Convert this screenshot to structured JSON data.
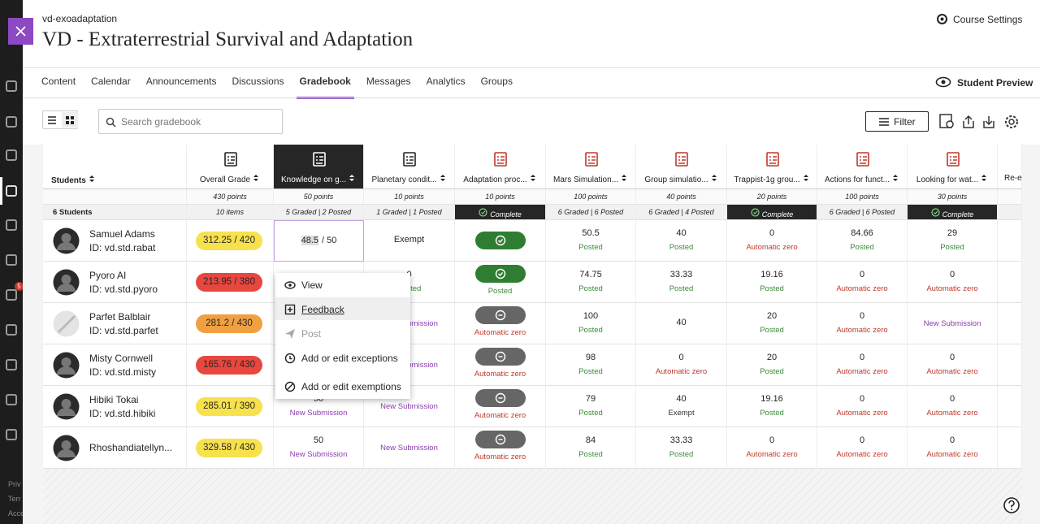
{
  "header": {
    "course_id": "vd-exoadaptation",
    "title": "VD - Extraterrestrial Survival and Adaptation",
    "settings": "Course Settings"
  },
  "tabs": {
    "items": [
      "Content",
      "Calendar",
      "Announcements",
      "Discussions",
      "Gradebook",
      "Messages",
      "Analytics",
      "Groups"
    ],
    "active": 4,
    "student_preview": "Student Preview"
  },
  "toolbar": {
    "search_placeholder": "Search gradebook",
    "filter": "Filter"
  },
  "sidebar": {
    "badge": "5",
    "footer": [
      "Priv",
      "Terr",
      "Acce"
    ]
  },
  "gradebook": {
    "columns": [
      {
        "name": "Students",
        "status": "6 Students"
      },
      {
        "name": "Overall Grade",
        "points": "430 points",
        "status": "10 items"
      },
      {
        "name": "Knowledge on g...",
        "points": "50 points",
        "status": "5 Graded | 2 Posted",
        "selected": true,
        "icon_color": "#222222"
      },
      {
        "name": "Planetary condit...",
        "points": "10 points",
        "status": "1 Graded | 1 Posted",
        "icon_color": "#222222"
      },
      {
        "name": "Adaptation proc...",
        "points": "10 points",
        "status": "Complete",
        "complete": true,
        "icon_color": "#c0392b"
      },
      {
        "name": "Mars Simulation...",
        "points": "100 points",
        "status": "6 Graded | 6 Posted",
        "icon_color": "#c0392b"
      },
      {
        "name": "Group simulatio...",
        "points": "40 points",
        "status": "6 Graded | 4 Posted",
        "icon_color": "#c0392b"
      },
      {
        "name": "Trappist-1g grou...",
        "points": "20 points",
        "status": "Complete",
        "complete": true,
        "icon_color": "#c0392b"
      },
      {
        "name": "Actions for funct...",
        "points": "100 points",
        "status": "6 Graded | 6 Posted",
        "icon_color": "#c0392b"
      },
      {
        "name": "Looking for wat...",
        "points": "30 points",
        "status": "Complete",
        "complete": true,
        "icon_color": "#c0392b"
      },
      {
        "name": "Re-e"
      }
    ],
    "rows": [
      {
        "name": "Samuel Adams",
        "id": "ID: vd.std.rabat",
        "grade": {
          "text": "312.25 / 420",
          "color": "#f7e14c"
        },
        "cells": [
          {
            "input": "48.5",
            "max": "/ 50"
          },
          {
            "main": "Exempt"
          },
          {
            "pill": "check"
          },
          {
            "main": "50.5",
            "sub": "Posted",
            "sub_color": "#3c8a3c"
          },
          {
            "main": "40",
            "sub": "Posted",
            "sub_color": "#3c8a3c"
          },
          {
            "main": "0",
            "sub": "Automatic zero",
            "sub_color": "#c0392b"
          },
          {
            "main": "84.66",
            "sub": "Posted",
            "sub_color": "#3c8a3c"
          },
          {
            "main": "29",
            "sub": "Posted",
            "sub_color": "#3c8a3c"
          }
        ]
      },
      {
        "name": "Pyoro AI",
        "id": "ID: vd.std.pyoro",
        "grade": {
          "text": "213.95 / 380",
          "color": "#e8473f"
        },
        "cells": [
          null,
          {
            "main": "0",
            "sub": "Posted",
            "sub_color": "#3c8a3c"
          },
          {
            "pill": "check",
            "sub": "Posted",
            "sub_color": "#3c8a3c"
          },
          {
            "main": "74.75",
            "sub": "Posted",
            "sub_color": "#3c8a3c"
          },
          {
            "main": "33.33",
            "sub": "Posted",
            "sub_color": "#3c8a3c"
          },
          {
            "main": "19.16",
            "sub": "Posted",
            "sub_color": "#3c8a3c"
          },
          {
            "main": "0",
            "sub": "Automatic zero",
            "sub_color": "#c0392b"
          },
          {
            "main": "0",
            "sub": "Automatic zero",
            "sub_color": "#c0392b"
          }
        ]
      },
      {
        "name": "Parfet Balblair",
        "id": "ID: vd.std.parfet",
        "grade": {
          "text": "281.2 / 430",
          "color": "#f0a040"
        },
        "cells": [
          null,
          {
            "sub": "New Submission",
            "sub_color": "#8a3cb0"
          },
          {
            "pill": "minus",
            "sub": "Automatic zero",
            "sub_color": "#c0392b"
          },
          {
            "main": "100",
            "sub": "Posted",
            "sub_color": "#3c8a3c"
          },
          {
            "main": "40"
          },
          {
            "main": "20",
            "sub": "Posted",
            "sub_color": "#3c8a3c"
          },
          {
            "main": "0",
            "sub": "Automatic zero",
            "sub_color": "#c0392b"
          },
          {
            "sub": "New Submission",
            "sub_color": "#8a3cb0"
          }
        ]
      },
      {
        "name": "Misty Cornwell",
        "id": "ID: vd.std.misty",
        "grade": {
          "text": "165.76 / 430",
          "color": "#e8473f"
        },
        "cells": [
          null,
          {
            "sub": "New Submission",
            "sub_color": "#8a3cb0"
          },
          {
            "pill": "minus",
            "sub": "Automatic zero",
            "sub_color": "#c0392b"
          },
          {
            "main": "98",
            "sub": "Posted",
            "sub_color": "#3c8a3c"
          },
          {
            "main": "0",
            "sub": "Automatic zero",
            "sub_color": "#c0392b"
          },
          {
            "main": "20",
            "sub": "Posted",
            "sub_color": "#3c8a3c"
          },
          {
            "main": "0",
            "sub": "Automatic zero",
            "sub_color": "#c0392b"
          },
          {
            "main": "0",
            "sub": "Automatic zero",
            "sub_color": "#c0392b"
          }
        ]
      },
      {
        "name": "Hibiki Tokai",
        "id": "ID: vd.std.hibiki",
        "grade": {
          "text": "285.01 / 390",
          "color": "#f7e14c"
        },
        "cells": [
          {
            "main": "50",
            "sub": "New Submission",
            "sub_color": "#8a3cb0"
          },
          {
            "sub": "New Submission",
            "sub_color": "#8a3cb0"
          },
          {
            "pill": "minus",
            "sub": "Automatic zero",
            "sub_color": "#c0392b"
          },
          {
            "main": "79",
            "sub": "Posted",
            "sub_color": "#3c8a3c"
          },
          {
            "main": "40",
            "sub": "Exempt",
            "sub_color": "#333333"
          },
          {
            "main": "19.16",
            "sub": "Posted",
            "sub_color": "#3c8a3c"
          },
          {
            "main": "0",
            "sub": "Automatic zero",
            "sub_color": "#c0392b"
          },
          {
            "main": "0",
            "sub": "Automatic zero",
            "sub_color": "#c0392b"
          }
        ]
      },
      {
        "name": "Rhoshandiatellyn...",
        "grade": {
          "text": "329.58 / 430",
          "color": "#f7e14c"
        },
        "cells": [
          {
            "main": "50",
            "sub": "New Submission",
            "sub_color": "#8a3cb0"
          },
          {
            "sub": "New Submission",
            "sub_color": "#8a3cb0"
          },
          {
            "pill": "minus",
            "sub": "Automatic zero",
            "sub_color": "#c0392b"
          },
          {
            "main": "84",
            "sub": "Posted",
            "sub_color": "#3c8a3c"
          },
          {
            "main": "33.33",
            "sub": "Posted",
            "sub_color": "#3c8a3c"
          },
          {
            "main": "0",
            "sub": "Automatic zero",
            "sub_color": "#c0392b"
          },
          {
            "main": "0",
            "sub": "Automatic zero",
            "sub_color": "#c0392b"
          },
          {
            "main": "0",
            "sub": "Automatic zero",
            "sub_color": "#c0392b"
          }
        ]
      }
    ]
  },
  "menu": {
    "items": [
      "View",
      "Feedback",
      "Post",
      "Add or edit exceptions",
      "Add or edit exemptions"
    ],
    "highlighted": 1,
    "disabled": 2
  }
}
